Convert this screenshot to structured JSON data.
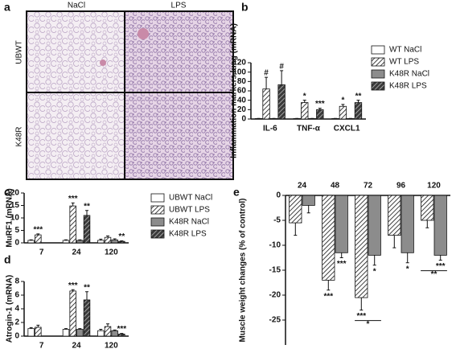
{
  "micrograph": {
    "label": "a",
    "columns": [
      "NaCl",
      "LPS"
    ],
    "rows": [
      "UBWT",
      "K48R"
    ]
  },
  "chart_data": [
    {
      "type": "bar",
      "label": "b",
      "ylabel": "Inflammation markers lung (mRNA)",
      "categories": [
        "IL-6",
        "TNF-α",
        "CXCL1"
      ],
      "ylim": [
        0,
        120
      ],
      "yticks": [
        0,
        20,
        40,
        60,
        80,
        100,
        120
      ],
      "legend": "right",
      "series": [
        {
          "name": "WT NaCl",
          "color": "#ffffff",
          "hatch": false,
          "values": [
            1,
            1,
            1
          ],
          "errors": [
            0.3,
            0.3,
            0.3
          ],
          "annotations": [
            null,
            null,
            null
          ]
        },
        {
          "name": "WT LPS",
          "color": "#ffffff",
          "hatch": true,
          "values": [
            64,
            35,
            27
          ],
          "errors": [
            25,
            5,
            4
          ],
          "annotations": [
            "#",
            "*",
            "*"
          ]
        },
        {
          "name": "K48R NaCl",
          "color": "#8c8c8c",
          "hatch": false,
          "values": [
            1,
            1,
            1
          ],
          "errors": [
            0.3,
            0.3,
            0.3
          ],
          "annotations": [
            null,
            null,
            null
          ]
        },
        {
          "name": "K48R LPS",
          "color": "#3a3a3a",
          "hatch": true,
          "values": [
            73,
            20,
            35
          ],
          "errors": [
            30,
            3,
            5
          ],
          "annotations": [
            "#",
            "***",
            "**"
          ]
        }
      ]
    },
    {
      "type": "bar",
      "label": "c",
      "ylabel": "MuRF1 (mRNA)",
      "categories": [
        "7",
        "24",
        "120"
      ],
      "ylim": [
        0,
        20
      ],
      "yticks": [
        0,
        5,
        10,
        15,
        20
      ],
      "legend": "right",
      "series": [
        {
          "name": "UBWT NaCl",
          "color": "#ffffff",
          "hatch": false,
          "values": [
            1,
            1,
            1
          ],
          "errors": [
            0.2,
            0.2,
            0.5
          ],
          "annotations": [
            null,
            null,
            null
          ]
        },
        {
          "name": "UBWT LPS",
          "color": "#ffffff",
          "hatch": true,
          "values": [
            3.2,
            14.8,
            2.2
          ],
          "errors": [
            0.4,
            1.2,
            0.6
          ],
          "annotations": [
            "***",
            "***",
            null
          ]
        },
        {
          "name": "K48R NaCl",
          "color": "#8c8c8c",
          "hatch": false,
          "values": [
            null,
            1,
            1.2
          ],
          "errors": [
            null,
            0.2,
            0.4
          ],
          "annotations": [
            null,
            null,
            null
          ]
        },
        {
          "name": "K48R LPS",
          "color": "#3a3a3a",
          "hatch": true,
          "values": [
            null,
            11,
            0.6
          ],
          "errors": [
            null,
            2,
            0.2
          ],
          "annotations": [
            null,
            "**",
            "**"
          ]
        }
      ]
    },
    {
      "type": "bar",
      "label": "d",
      "ylabel": "Atrogin-1 (mRNA)",
      "categories": [
        "7",
        "24",
        "120"
      ],
      "ylim": [
        0,
        8
      ],
      "yticks": [
        0,
        2,
        4,
        6,
        8
      ],
      "series": [
        {
          "color": "#ffffff",
          "hatch": false,
          "values": [
            1.1,
            1,
            0.8
          ],
          "errors": [
            0.15,
            0.1,
            0.2
          ],
          "annotations": [
            null,
            null,
            null
          ]
        },
        {
          "color": "#ffffff",
          "hatch": true,
          "values": [
            1.3,
            6.6,
            1.4
          ],
          "errors": [
            0.3,
            0.2,
            0.4
          ],
          "annotations": [
            null,
            "***",
            null
          ]
        },
        {
          "color": "#8c8c8c",
          "hatch": false,
          "values": [
            null,
            1,
            0.8
          ],
          "errors": [
            null,
            0.1,
            0.1
          ],
          "annotations": [
            null,
            null,
            null
          ]
        },
        {
          "color": "#3a3a3a",
          "hatch": true,
          "values": [
            null,
            5.3,
            0.3
          ],
          "errors": [
            null,
            1.2,
            0.1
          ],
          "annotations": [
            null,
            "**",
            "***"
          ]
        }
      ]
    },
    {
      "type": "bar",
      "label": "e",
      "ylabel": "Muscle weight changes (% of control)",
      "categories": [
        "24",
        "48",
        "72",
        "96",
        "120"
      ],
      "ylim": [
        -30,
        0
      ],
      "yticks": [
        0,
        -5,
        -10,
        -15,
        -20,
        -25
      ],
      "series": [
        {
          "color": "#ffffff",
          "hatch": true,
          "values": [
            -5.5,
            -17,
            -20.5,
            -8,
            -5
          ],
          "errors": [
            2.5,
            2,
            2.5,
            2.5,
            1.5
          ],
          "annotations": [
            null,
            "***",
            "***",
            null,
            null
          ]
        },
        {
          "color": "#8c8c8c",
          "hatch": false,
          "values": [
            -2,
            -11.5,
            -12,
            -11.5,
            -12
          ],
          "errors": [
            1.5,
            1,
            2,
            2,
            1
          ],
          "annotations": [
            null,
            "***",
            "*",
            "*",
            "***"
          ]
        }
      ],
      "comparisons": [
        null,
        null,
        "*",
        null,
        "**"
      ]
    }
  ]
}
